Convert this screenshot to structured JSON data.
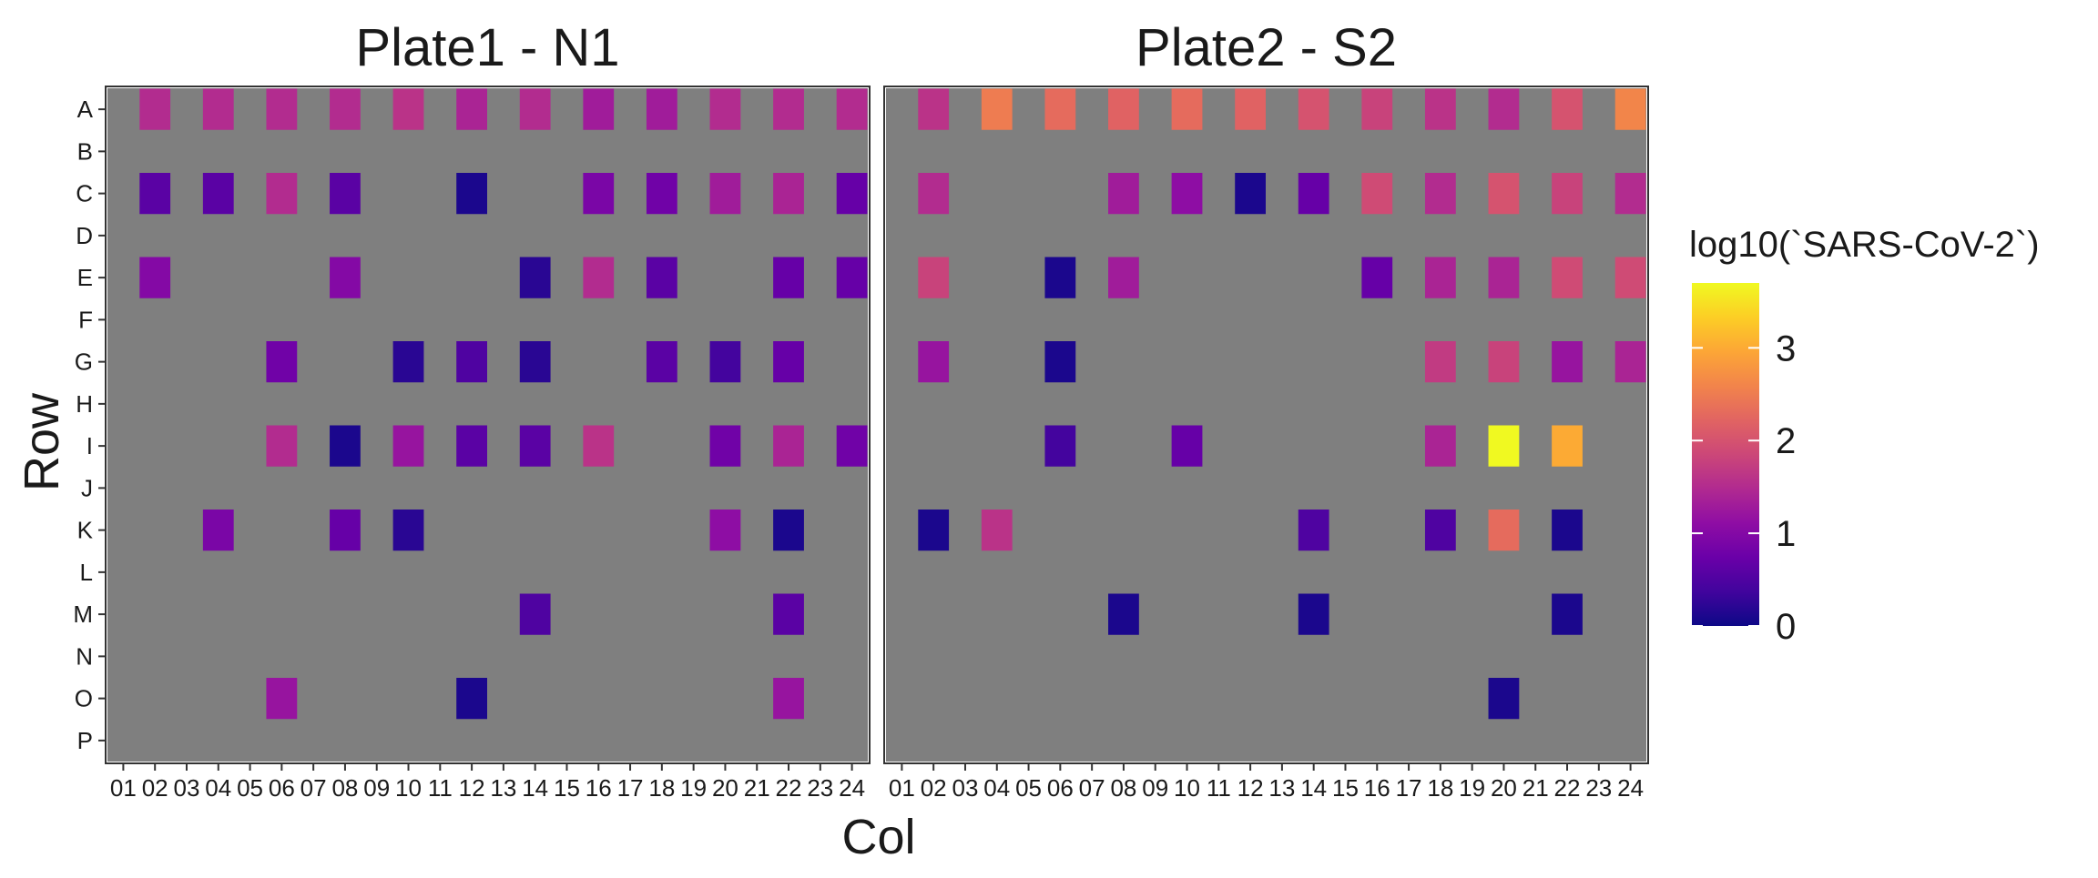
{
  "chart_data": {
    "type": "heatmap",
    "xlabel": "Col",
    "ylabel": "Row",
    "rows": [
      "A",
      "B",
      "C",
      "D",
      "E",
      "F",
      "G",
      "H",
      "I",
      "J",
      "K",
      "L",
      "M",
      "N",
      "O",
      "P"
    ],
    "cols": [
      "01",
      "02",
      "03",
      "04",
      "05",
      "06",
      "07",
      "08",
      "09",
      "10",
      "11",
      "12",
      "13",
      "14",
      "15",
      "16",
      "17",
      "18",
      "19",
      "20",
      "21",
      "22",
      "23",
      "24"
    ],
    "legend": {
      "title": "log10(`SARS-CoV-2`)",
      "ticks": [
        0,
        1,
        2,
        3
      ],
      "range": [
        0,
        3.7
      ],
      "colormap": "plasma"
    },
    "missing_color": "#7f7f7f",
    "panels": [
      {
        "title": "Plate1 - N1",
        "cells": [
          {
            "row": "A",
            "col": "02",
            "value": 1.5
          },
          {
            "row": "A",
            "col": "04",
            "value": 1.5
          },
          {
            "row": "A",
            "col": "06",
            "value": 1.5
          },
          {
            "row": "A",
            "col": "08",
            "value": 1.5
          },
          {
            "row": "A",
            "col": "10",
            "value": 1.6
          },
          {
            "row": "A",
            "col": "12",
            "value": 1.4
          },
          {
            "row": "A",
            "col": "14",
            "value": 1.5
          },
          {
            "row": "A",
            "col": "16",
            "value": 1.3
          },
          {
            "row": "A",
            "col": "18",
            "value": 1.3
          },
          {
            "row": "A",
            "col": "20",
            "value": 1.5
          },
          {
            "row": "A",
            "col": "22",
            "value": 1.5
          },
          {
            "row": "A",
            "col": "24",
            "value": 1.5
          },
          {
            "row": "C",
            "col": "02",
            "value": 0.6
          },
          {
            "row": "C",
            "col": "04",
            "value": 0.6
          },
          {
            "row": "C",
            "col": "06",
            "value": 1.5
          },
          {
            "row": "C",
            "col": "08",
            "value": 0.6
          },
          {
            "row": "C",
            "col": "12",
            "value": 0.1
          },
          {
            "row": "C",
            "col": "16",
            "value": 0.9
          },
          {
            "row": "C",
            "col": "18",
            "value": 0.8
          },
          {
            "row": "C",
            "col": "20",
            "value": 1.3
          },
          {
            "row": "C",
            "col": "22",
            "value": 1.4
          },
          {
            "row": "C",
            "col": "24",
            "value": 0.7
          },
          {
            "row": "E",
            "col": "02",
            "value": 1.0
          },
          {
            "row": "E",
            "col": "08",
            "value": 1.0
          },
          {
            "row": "E",
            "col": "14",
            "value": 0.2
          },
          {
            "row": "E",
            "col": "16",
            "value": 1.5
          },
          {
            "row": "E",
            "col": "18",
            "value": 0.6
          },
          {
            "row": "E",
            "col": "22",
            "value": 0.7
          },
          {
            "row": "E",
            "col": "24",
            "value": 0.7
          },
          {
            "row": "G",
            "col": "06",
            "value": 0.8
          },
          {
            "row": "G",
            "col": "10",
            "value": 0.2
          },
          {
            "row": "G",
            "col": "12",
            "value": 0.5
          },
          {
            "row": "G",
            "col": "14",
            "value": 0.2
          },
          {
            "row": "G",
            "col": "18",
            "value": 0.6
          },
          {
            "row": "G",
            "col": "20",
            "value": 0.4
          },
          {
            "row": "G",
            "col": "22",
            "value": 0.7
          },
          {
            "row": "I",
            "col": "06",
            "value": 1.5
          },
          {
            "row": "I",
            "col": "08",
            "value": 0.1
          },
          {
            "row": "I",
            "col": "10",
            "value": 1.2
          },
          {
            "row": "I",
            "col": "12",
            "value": 0.6
          },
          {
            "row": "I",
            "col": "14",
            "value": 0.6
          },
          {
            "row": "I",
            "col": "16",
            "value": 1.6
          },
          {
            "row": "I",
            "col": "20",
            "value": 0.8
          },
          {
            "row": "I",
            "col": "22",
            "value": 1.4
          },
          {
            "row": "I",
            "col": "24",
            "value": 0.8
          },
          {
            "row": "K",
            "col": "04",
            "value": 0.9
          },
          {
            "row": "K",
            "col": "08",
            "value": 0.7
          },
          {
            "row": "K",
            "col": "10",
            "value": 0.2
          },
          {
            "row": "K",
            "col": "20",
            "value": 1.1
          },
          {
            "row": "K",
            "col": "22",
            "value": 0.1
          },
          {
            "row": "M",
            "col": "14",
            "value": 0.5
          },
          {
            "row": "M",
            "col": "22",
            "value": 0.6
          },
          {
            "row": "O",
            "col": "06",
            "value": 1.2
          },
          {
            "row": "O",
            "col": "12",
            "value": 0.1
          },
          {
            "row": "O",
            "col": "22",
            "value": 1.2
          }
        ]
      },
      {
        "title": "Plate2 - S2",
        "cells": [
          {
            "row": "A",
            "col": "02",
            "value": 1.6
          },
          {
            "row": "A",
            "col": "04",
            "value": 2.5
          },
          {
            "row": "A",
            "col": "06",
            "value": 2.3
          },
          {
            "row": "A",
            "col": "08",
            "value": 2.2
          },
          {
            "row": "A",
            "col": "10",
            "value": 2.3
          },
          {
            "row": "A",
            "col": "12",
            "value": 2.2
          },
          {
            "row": "A",
            "col": "14",
            "value": 2.0
          },
          {
            "row": "A",
            "col": "16",
            "value": 1.8
          },
          {
            "row": "A",
            "col": "18",
            "value": 1.6
          },
          {
            "row": "A",
            "col": "20",
            "value": 1.5
          },
          {
            "row": "A",
            "col": "22",
            "value": 2.0
          },
          {
            "row": "A",
            "col": "24",
            "value": 2.6
          },
          {
            "row": "C",
            "col": "02",
            "value": 1.5
          },
          {
            "row": "C",
            "col": "08",
            "value": 1.3
          },
          {
            "row": "C",
            "col": "10",
            "value": 1.1
          },
          {
            "row": "C",
            "col": "12",
            "value": 0.1
          },
          {
            "row": "C",
            "col": "14",
            "value": 0.7
          },
          {
            "row": "C",
            "col": "16",
            "value": 1.9
          },
          {
            "row": "C",
            "col": "18",
            "value": 1.5
          },
          {
            "row": "C",
            "col": "20",
            "value": 2.0
          },
          {
            "row": "C",
            "col": "22",
            "value": 1.8
          },
          {
            "row": "C",
            "col": "24",
            "value": 1.5
          },
          {
            "row": "E",
            "col": "02",
            "value": 1.8
          },
          {
            "row": "E",
            "col": "06",
            "value": 0.1
          },
          {
            "row": "E",
            "col": "08",
            "value": 1.3
          },
          {
            "row": "E",
            "col": "16",
            "value": 0.7
          },
          {
            "row": "E",
            "col": "18",
            "value": 1.4
          },
          {
            "row": "E",
            "col": "20",
            "value": 1.4
          },
          {
            "row": "E",
            "col": "22",
            "value": 1.9
          },
          {
            "row": "E",
            "col": "24",
            "value": 1.9
          },
          {
            "row": "G",
            "col": "02",
            "value": 1.2
          },
          {
            "row": "G",
            "col": "06",
            "value": 0.1
          },
          {
            "row": "G",
            "col": "18",
            "value": 1.7
          },
          {
            "row": "G",
            "col": "20",
            "value": 1.8
          },
          {
            "row": "G",
            "col": "22",
            "value": 1.2
          },
          {
            "row": "G",
            "col": "24",
            "value": 1.4
          },
          {
            "row": "I",
            "col": "06",
            "value": 0.4
          },
          {
            "row": "I",
            "col": "10",
            "value": 0.7
          },
          {
            "row": "I",
            "col": "18",
            "value": 1.4
          },
          {
            "row": "I",
            "col": "20",
            "value": 3.7
          },
          {
            "row": "I",
            "col": "22",
            "value": 3.0
          },
          {
            "row": "K",
            "col": "02",
            "value": 0.1
          },
          {
            "row": "K",
            "col": "04",
            "value": 1.6
          },
          {
            "row": "K",
            "col": "14",
            "value": 0.5
          },
          {
            "row": "K",
            "col": "18",
            "value": 0.5
          },
          {
            "row": "K",
            "col": "20",
            "value": 2.3
          },
          {
            "row": "K",
            "col": "22",
            "value": 0.1
          },
          {
            "row": "M",
            "col": "08",
            "value": 0.1
          },
          {
            "row": "M",
            "col": "14",
            "value": 0.1
          },
          {
            "row": "M",
            "col": "22",
            "value": 0.1
          },
          {
            "row": "O",
            "col": "20",
            "value": 0.1
          }
        ]
      }
    ]
  }
}
